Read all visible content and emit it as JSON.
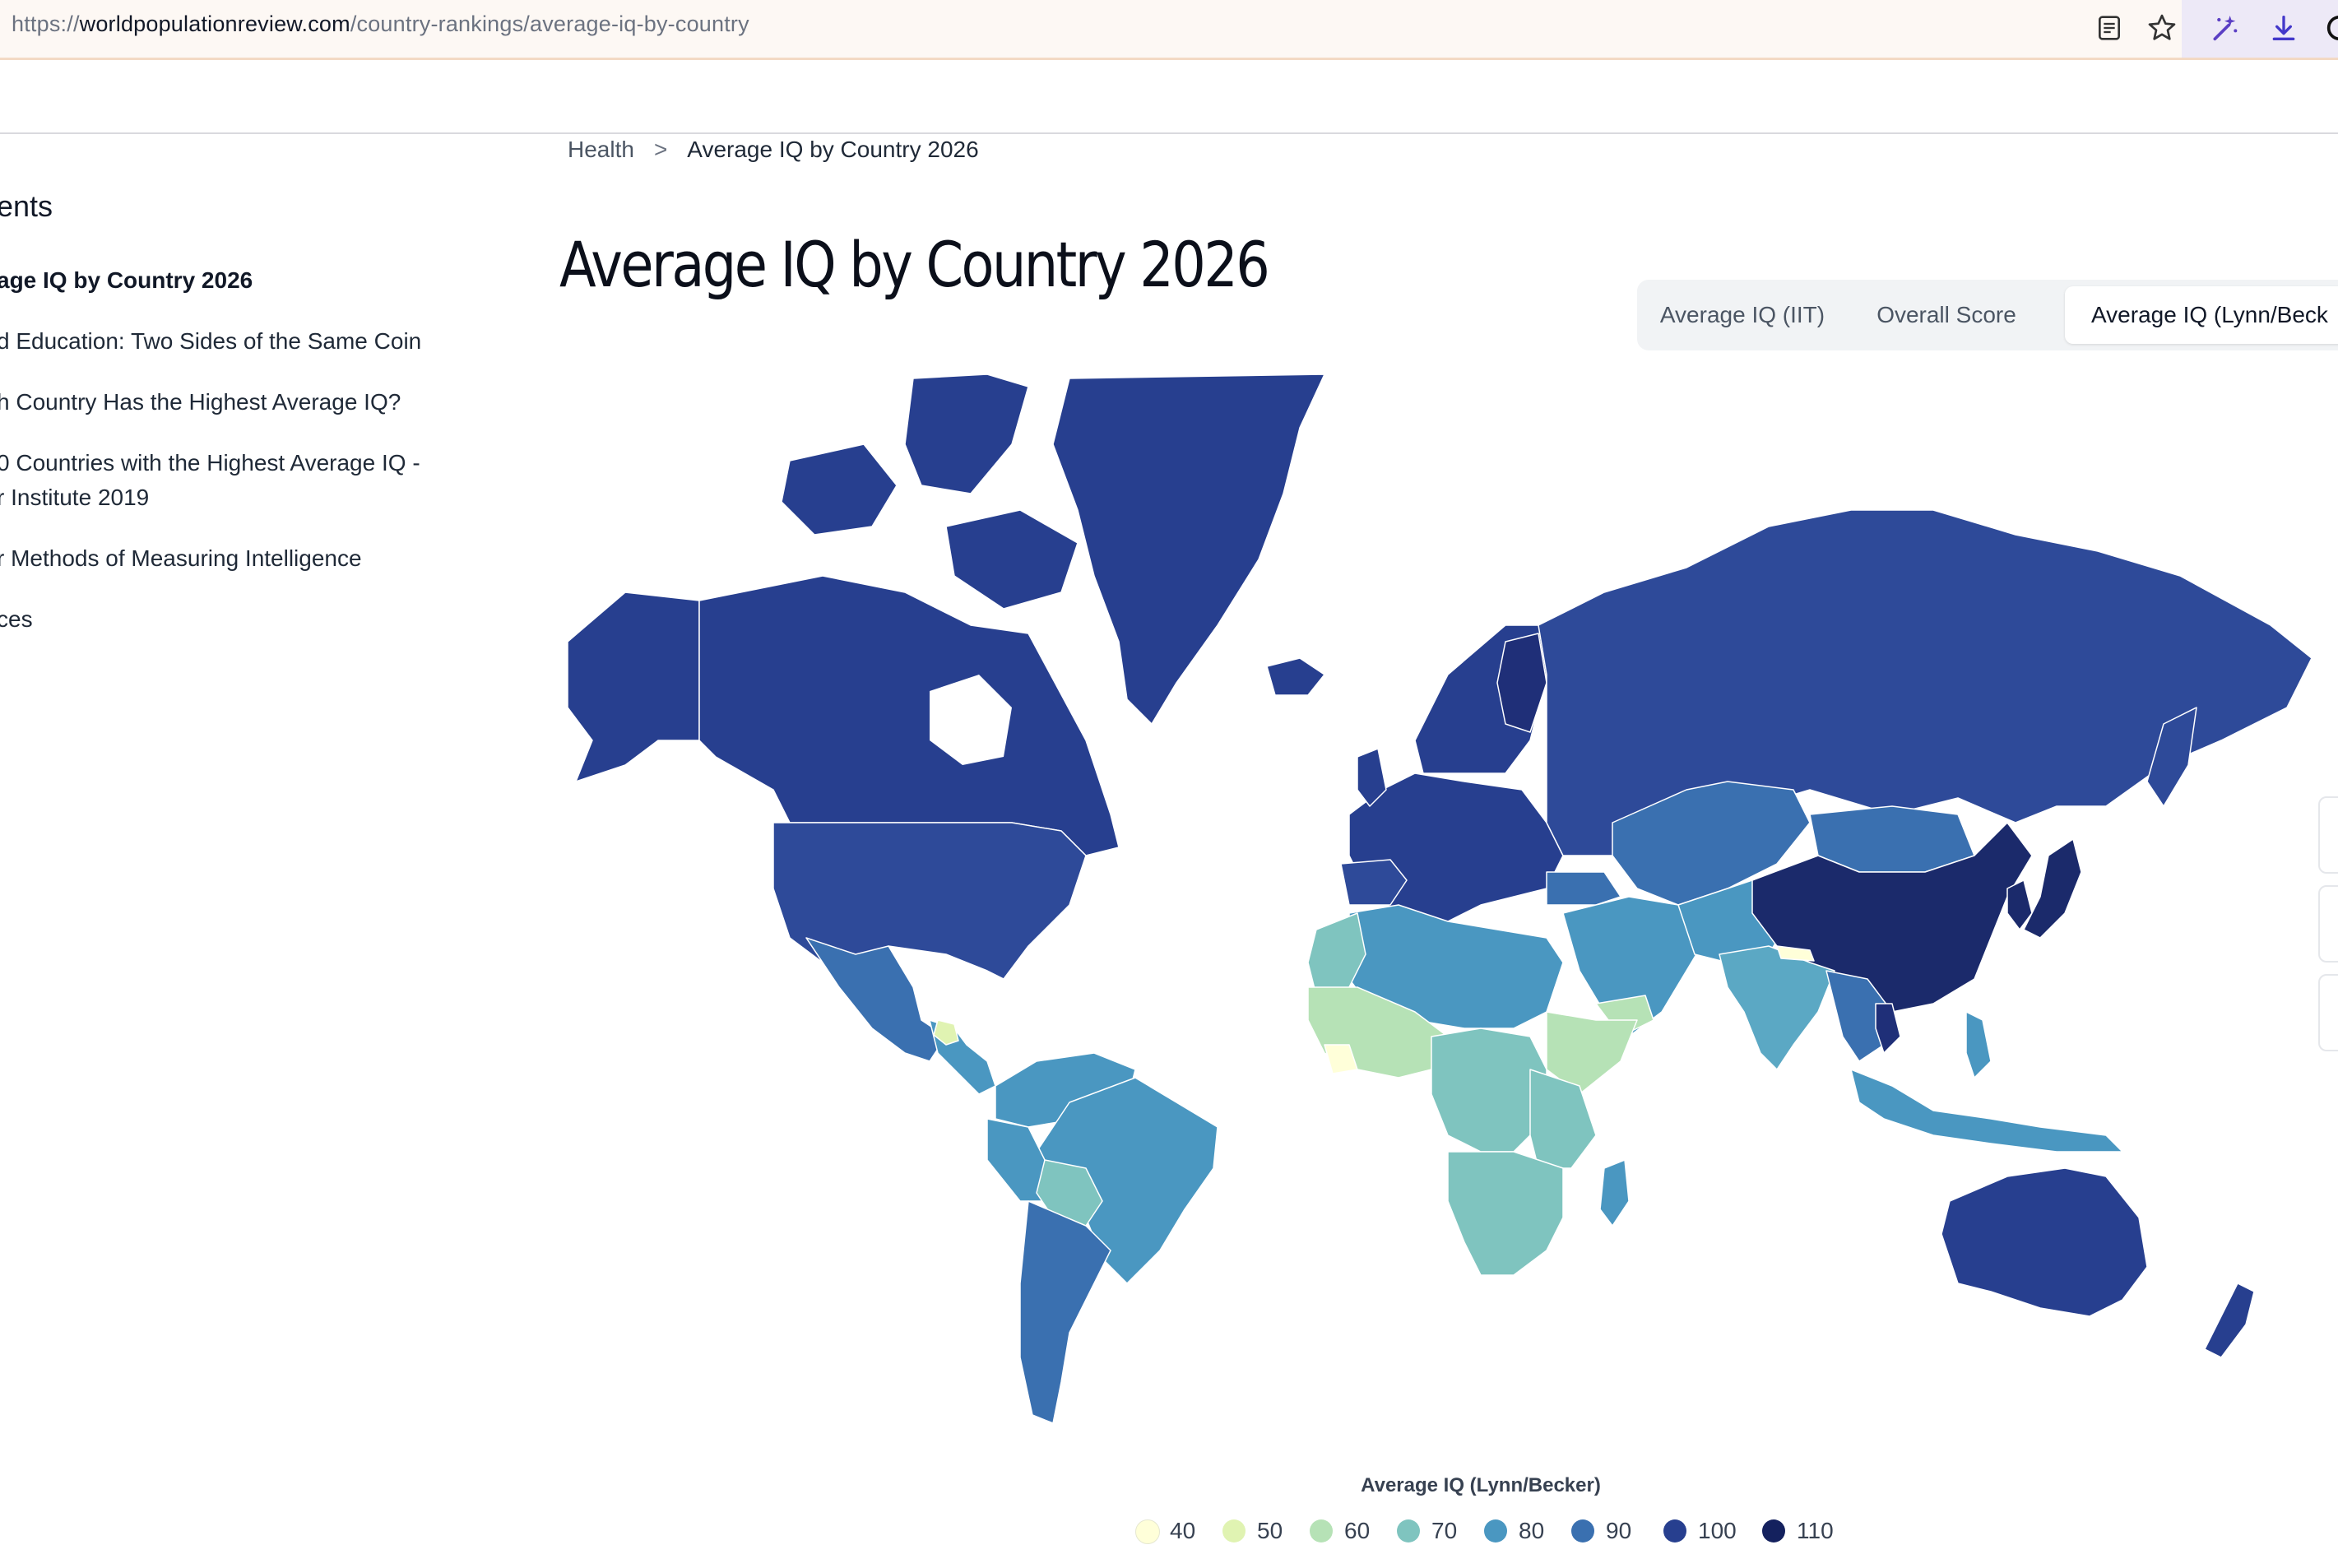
{
  "browser": {
    "url_scheme": "https://",
    "url_domain": "worldpopulationreview.com",
    "url_path": "/country-rankings/average-iq-by-country"
  },
  "toc": {
    "title": "ents",
    "items": [
      {
        "label": "age IQ by Country 2026",
        "active": true
      },
      {
        "label": "d Education: Two Sides of the Same Coin"
      },
      {
        "label": "h Country Has the Highest Average IQ?"
      },
      {
        "label": "0 Countries with the Highest Average IQ -",
        "label2": "r Institute 2019"
      },
      {
        "label": "r Methods of Measuring Intelligence"
      },
      {
        "label": "ces"
      }
    ]
  },
  "breadcrumb": {
    "parent": "Health",
    "separator": ">",
    "current": "Average IQ by Country 2026"
  },
  "page_title": "Average IQ by Country 2026",
  "tabs": [
    {
      "label": "Average IQ (IIT)"
    },
    {
      "label": "Overall Score"
    },
    {
      "label": "Average IQ (Lynn/Beck",
      "active": true
    }
  ],
  "legend": {
    "title": "Average IQ (Lynn/Becker)",
    "bins": [
      {
        "label": "40",
        "color": "#ffffd9"
      },
      {
        "label": "50",
        "color": "#e0f3b2"
      },
      {
        "label": "60",
        "color": "#b6e2b6"
      },
      {
        "label": "70",
        "color": "#7fc4bf"
      },
      {
        "label": "80",
        "color": "#4a97c1"
      },
      {
        "label": "90",
        "color": "#3a70b0"
      },
      {
        "label": "100",
        "color": "#273f8f"
      },
      {
        "label": "110",
        "color": "#14215e"
      }
    ]
  },
  "map_regions": [
    {
      "name": "Greenland",
      "iq_bin": "100"
    },
    {
      "name": "Canada",
      "iq_bin": "100"
    },
    {
      "name": "Alaska (USA)",
      "iq_bin": "100"
    },
    {
      "name": "United States",
      "iq_bin": "100"
    },
    {
      "name": "Mexico",
      "iq_bin": "90"
    },
    {
      "name": "Central America",
      "iq_bin": "80"
    },
    {
      "name": "Guatemala",
      "iq_bin": "50"
    },
    {
      "name": "Brazil",
      "iq_bin": "80"
    },
    {
      "name": "Colombia/Venezuela",
      "iq_bin": "80"
    },
    {
      "name": "Bolivia",
      "iq_bin": "70"
    },
    {
      "name": "Argentina/Chile",
      "iq_bin": "90"
    },
    {
      "name": "Europe",
      "iq_bin": "100"
    },
    {
      "name": "Iceland",
      "iq_bin": "100"
    },
    {
      "name": "Scandinavia",
      "iq_bin": "100"
    },
    {
      "name": "Russia",
      "iq_bin": "100"
    },
    {
      "name": "Central Asia",
      "iq_bin": "90"
    },
    {
      "name": "Mongolia",
      "iq_bin": "90"
    },
    {
      "name": "China",
      "iq_bin": "110"
    },
    {
      "name": "Japan",
      "iq_bin": "110"
    },
    {
      "name": "Korea",
      "iq_bin": "110"
    },
    {
      "name": "Middle East",
      "iq_bin": "80"
    },
    {
      "name": "India",
      "iq_bin": "80"
    },
    {
      "name": "Nepal",
      "iq_bin": "40"
    },
    {
      "name": "Southeast Asia",
      "iq_bin": "90"
    },
    {
      "name": "Indonesia",
      "iq_bin": "80"
    },
    {
      "name": "Philippines",
      "iq_bin": "80"
    },
    {
      "name": "North Africa",
      "iq_bin": "80"
    },
    {
      "name": "West Africa",
      "iq_bin": "60"
    },
    {
      "name": "Sierra Leone",
      "iq_bin": "40"
    },
    {
      "name": "Central Africa",
      "iq_bin": "70"
    },
    {
      "name": "East Africa",
      "iq_bin": "70"
    },
    {
      "name": "Southern Africa",
      "iq_bin": "70"
    },
    {
      "name": "Madagascar",
      "iq_bin": "80"
    },
    {
      "name": "Australia",
      "iq_bin": "100"
    },
    {
      "name": "New Zealand",
      "iq_bin": "100"
    }
  ]
}
